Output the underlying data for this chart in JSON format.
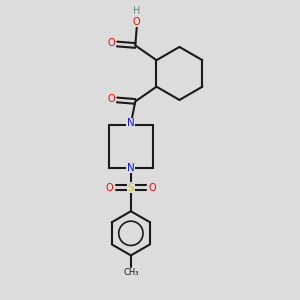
{
  "bg_color": "#dcdcdc",
  "bond_color": "#1a1a1a",
  "N_color": "#1414ff",
  "O_color": "#ff0000",
  "S_color": "#cccc00",
  "H_color": "#5f8f8f",
  "figsize": [
    3.0,
    3.0
  ],
  "dpi": 100,
  "xlim": [
    0,
    10
  ],
  "ylim": [
    0,
    10
  ]
}
